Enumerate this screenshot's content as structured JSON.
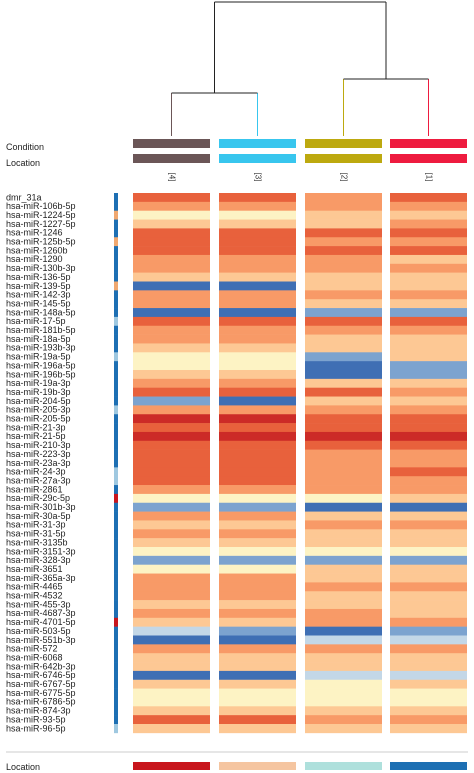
{
  "chart_data": {
    "type": "heatmap",
    "track_labels": {
      "condition": "Condition",
      "location": "Location",
      "footer_location": "Location"
    },
    "columns": [
      {
        "label": "[4]",
        "condition_color": "#6b5657",
        "location_color": "#6b5657",
        "footer_color": "#c8161d"
      },
      {
        "label": "[3]",
        "condition_color": "#38c6ee",
        "location_color": "#38c6ee",
        "footer_color": "#f5c5a0"
      },
      {
        "label": "[2]",
        "condition_color": "#bda90f",
        "location_color": "#bda90f",
        "footer_color": "#aee0dc"
      },
      {
        "label": "[1]",
        "condition_color": "#ee1b3f",
        "location_color": "#ee1b3f",
        "footer_color": "#1d6fb3"
      }
    ],
    "dendrogram": {
      "merges": [
        [
          "[4]",
          "[3]"
        ],
        [
          "[2]",
          "[1]"
        ],
        [
          "([4],[3])",
          "([2],[1])"
        ]
      ]
    },
    "rows": [
      "dmr_31a",
      "hsa-miR-106b-5p",
      "hsa-miR-1224-5p",
      "hsa-miR-1227-5p",
      "hsa-miR-1246",
      "hsa-miR-125b-5p",
      "hsa-miR-1260b",
      "hsa-miR-1290",
      "hsa-miR-130b-3p",
      "hsa-miR-136-5p",
      "hsa-miR-139-5p",
      "hsa-miR-142-3p",
      "hsa-miR-145-5p",
      "hsa-miR-148a-5p",
      "hsa-miR-17-5p",
      "hsa-miR-181b-5p",
      "hsa-miR-18a-5p",
      "hsa-miR-193b-3p",
      "hsa-miR-19a-5p",
      "hsa-miR-196a-5p",
      "hsa-miR-196b-5p",
      "hsa-miR-19a-3p",
      "hsa-miR-19b-3p",
      "hsa-miR-204-5p",
      "hsa-miR-205-3p",
      "hsa-miR-205-5p",
      "hsa-miR-21-3p",
      "hsa-miR-21-5p",
      "hsa-miR-210-3p",
      "hsa-miR-223-3p",
      "hsa-miR-23a-3p",
      "hsa-miR-24-3p",
      "hsa-miR-27a-3p",
      "hsa-miR-2861",
      "hsa-miR-29c-5p",
      "hsa-miR-301b-3p",
      "hsa-miR-30a-5p",
      "hsa-miR-31-3p",
      "hsa-miR-31-5p",
      "hsa-miR-3135b",
      "hsa-miR-3151-3p",
      "hsa-miR-328-3p",
      "hsa-miR-3651",
      "hsa-miR-365a-3p",
      "hsa-miR-4465",
      "hsa-miR-4532",
      "hsa-miR-455-3p",
      "hsa-miR-4687-3p",
      "hsa-miR-4701-5p",
      "hsa-miR-503-5p",
      "hsa-miR-551b-3p",
      "hsa-miR-572",
      "hsa-miR-6068",
      "hsa-miR-642b-3p",
      "hsa-miR-6746-5p",
      "hsa-miR-6767-5p",
      "hsa-miR-6775-5p",
      "hsa-miR-6786-5p",
      "hsa-miR-874-3p",
      "hsa-miR-93-5p",
      "hsa-miR-96-5p"
    ],
    "row_annotation": [
      2,
      2,
      1,
      2,
      2,
      1,
      2,
      2,
      2,
      2,
      1,
      2,
      2,
      2,
      3,
      2,
      2,
      2,
      3,
      2,
      2,
      2,
      2,
      2,
      3,
      2,
      2,
      2,
      2,
      2,
      2,
      3,
      3,
      2,
      0,
      2,
      2,
      2,
      2,
      2,
      2,
      2,
      2,
      2,
      2,
      2,
      2,
      2,
      0,
      2,
      2,
      2,
      2,
      2,
      2,
      2,
      2,
      2,
      2,
      2,
      3
    ],
    "row_annotation_colors": [
      "#c8161d",
      "#f0a870",
      "#1d6fb3",
      "#9fc8e0"
    ],
    "color_scale": [
      "#3f6fb4",
      "#7ca3cf",
      "#c3d7e7",
      "#fdf3c4",
      "#fdc894",
      "#f89a67",
      "#e8613c",
      "#cc2b27"
    ],
    "values": [
      [
        6,
        6,
        5,
        6
      ],
      [
        5,
        5,
        5,
        5
      ],
      [
        3,
        3,
        4,
        4
      ],
      [
        4,
        4,
        4,
        5
      ],
      [
        6,
        6,
        6,
        6
      ],
      [
        6,
        6,
        5,
        5
      ],
      [
        6,
        6,
        6,
        6
      ],
      [
        5,
        5,
        5,
        4
      ],
      [
        5,
        5,
        5,
        5
      ],
      [
        4,
        4,
        4,
        4
      ],
      [
        0,
        0,
        4,
        4
      ],
      [
        5,
        5,
        5,
        5
      ],
      [
        5,
        5,
        4,
        4
      ],
      [
        0,
        0,
        1,
        1
      ],
      [
        6,
        6,
        6,
        6
      ],
      [
        5,
        5,
        5,
        5
      ],
      [
        5,
        5,
        4,
        4
      ],
      [
        4,
        4,
        4,
        4
      ],
      [
        3,
        3,
        1,
        4
      ],
      [
        3,
        3,
        0,
        1
      ],
      [
        4,
        4,
        0,
        1
      ],
      [
        5,
        5,
        4,
        4
      ],
      [
        6,
        6,
        6,
        5
      ],
      [
        1,
        0,
        4,
        4
      ],
      [
        5,
        5,
        5,
        5
      ],
      [
        7,
        7,
        6,
        6
      ],
      [
        6,
        6,
        6,
        6
      ],
      [
        7,
        7,
        7,
        7
      ],
      [
        6,
        6,
        6,
        6
      ],
      [
        6,
        6,
        5,
        5
      ],
      [
        6,
        6,
        5,
        5
      ],
      [
        6,
        6,
        5,
        6
      ],
      [
        6,
        6,
        5,
        5
      ],
      [
        5,
        5,
        5,
        5
      ],
      [
        3,
        3,
        3,
        4
      ],
      [
        1,
        1,
        0,
        0
      ],
      [
        5,
        5,
        4,
        4
      ],
      [
        4,
        4,
        5,
        5
      ],
      [
        5,
        5,
        4,
        4
      ],
      [
        4,
        4,
        4,
        4
      ],
      [
        3,
        3,
        3,
        3
      ],
      [
        1,
        1,
        1,
        1
      ],
      [
        3,
        3,
        4,
        4
      ],
      [
        5,
        5,
        4,
        4
      ],
      [
        5,
        5,
        5,
        5
      ],
      [
        5,
        5,
        4,
        4
      ],
      [
        4,
        4,
        4,
        4
      ],
      [
        5,
        5,
        5,
        4
      ],
      [
        4,
        4,
        5,
        5
      ],
      [
        2,
        1,
        0,
        1
      ],
      [
        0,
        0,
        2,
        2
      ],
      [
        5,
        5,
        5,
        5
      ],
      [
        4,
        4,
        4,
        4
      ],
      [
        4,
        4,
        4,
        4
      ],
      [
        0,
        0,
        2,
        2
      ],
      [
        4,
        4,
        3,
        4
      ],
      [
        3,
        3,
        3,
        3
      ],
      [
        3,
        3,
        3,
        3
      ],
      [
        4,
        4,
        4,
        4
      ],
      [
        6,
        6,
        5,
        5
      ],
      [
        4,
        4,
        4,
        4
      ]
    ]
  }
}
